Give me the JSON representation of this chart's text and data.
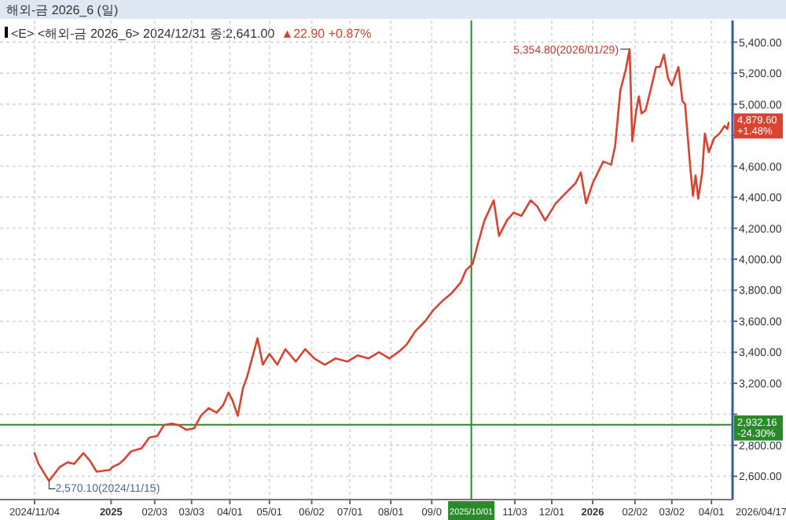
{
  "chart_data": {
    "type": "line",
    "title": "해외-금 2026_6 (일)",
    "subtitle": "<E> <해외-금 2026_6> 2024/12/31 종:2,641.00",
    "annotations": [
      "▲22.90 +0.87%",
      "2026/04/17",
      {
        "text": "5,354.80(2026/01/29)",
        "x": "2026-01-29",
        "y": 5354.8
      },
      {
        "text": "2,570.10(2024/11/15)",
        "x": "2024-11-15",
        "y": 2570.1
      },
      {
        "text": "4,879.60 +1.48%",
        "x": "2026-04-14",
        "y": 4879.6
      }
    ],
    "series": [
      {
        "color": "#d9432f",
        "x": [
          "2024-11-04",
          "2024-11-07",
          "2024-11-12",
          "2024-11-15",
          "2024-11-23",
          "2024-11-29",
          "2024-12-04",
          "2024-12-11",
          "2024-12-16",
          "2024-12-21",
          "2024-12-31",
          "2025-01-02",
          "2025-01-07",
          "2025-01-11",
          "2025-01-16",
          "2025-01-24",
          "2025-01-30",
          "2025-02-05",
          "2025-02-10",
          "2025-02-16",
          "2025-02-21",
          "2025-02-27",
          "2025-03-05",
          "2025-03-10",
          "2025-03-16",
          "2025-03-22",
          "2025-03-27",
          "2025-03-31",
          "2025-04-03",
          "2025-04-07",
          "2025-04-11",
          "2025-04-14",
          "2025-04-22",
          "2025-04-26",
          "2025-05-01",
          "2025-05-07",
          "2025-05-13",
          "2025-05-21",
          "2025-05-28",
          "2025-06-04",
          "2025-06-12",
          "2025-06-20",
          "2025-06-29",
          "2025-07-07",
          "2025-07-15",
          "2025-07-23",
          "2025-07-31",
          "2025-08-08",
          "2025-08-13",
          "2025-08-20",
          "2025-08-27",
          "2025-09-02",
          "2025-09-09",
          "2025-09-16",
          "2025-09-23",
          "2025-09-27",
          "2025-10-02",
          "2025-10-06",
          "2025-10-11",
          "2025-10-18",
          "2025-10-22",
          "2025-10-28",
          "2025-11-02",
          "2025-11-08",
          "2025-11-15",
          "2025-11-20",
          "2025-11-26",
          "2025-12-04",
          "2025-12-12",
          "2025-12-19",
          "2025-12-23",
          "2025-12-27",
          "2026-01-01",
          "2026-01-09",
          "2026-01-15",
          "2026-01-18",
          "2026-01-22",
          "2026-01-26",
          "2026-01-29",
          "2026-01-31",
          "2026-02-03",
          "2026-02-05",
          "2026-02-07",
          "2026-02-10",
          "2026-02-13",
          "2026-02-18",
          "2026-02-21",
          "2026-02-24",
          "2026-02-27",
          "2026-03-02",
          "2026-03-07",
          "2026-03-10",
          "2026-03-12",
          "2026-03-16",
          "2026-03-18",
          "2026-03-20",
          "2026-03-22",
          "2026-03-25",
          "2026-03-27",
          "2026-03-30",
          "2026-04-03",
          "2026-04-07",
          "2026-04-11",
          "2026-04-13",
          "2026-04-14"
        ],
        "values": [
          2750,
          2680,
          2610,
          2570.1,
          2660,
          2690,
          2680,
          2750,
          2700,
          2630,
          2641,
          2660,
          2680,
          2710,
          2760,
          2780,
          2850,
          2860,
          2930,
          2940,
          2930,
          2900,
          2910,
          2990,
          3040,
          3010,
          3060,
          3140,
          3090,
          2990,
          3170,
          3240,
          3490,
          3320,
          3390,
          3320,
          3420,
          3340,
          3420,
          3360,
          3320,
          3360,
          3340,
          3380,
          3360,
          3400,
          3360,
          3410,
          3450,
          3540,
          3600,
          3670,
          3730,
          3780,
          3850,
          3930,
          3970,
          4100,
          4250,
          4380,
          4150,
          4250,
          4300,
          4280,
          4380,
          4340,
          4250,
          4360,
          4430,
          4490,
          4560,
          4360,
          4490,
          4630,
          4610,
          4730,
          5090,
          5220,
          5354.8,
          4760,
          4960,
          5050,
          4940,
          4960,
          5060,
          5240,
          5240,
          5320,
          5170,
          5120,
          5240,
          5020,
          5000,
          4590,
          4410,
          4540,
          4390,
          4560,
          4810,
          4690,
          4780,
          4810,
          4860,
          4840,
          4879.6
        ]
      }
    ],
    "xlim": [
      "2024-11-04",
      "2026-04-17"
    ],
    "xticks": [
      {
        "value": "2024-11-04",
        "label": "2024/11/04"
      },
      {
        "value": "2025-01-01",
        "label": "2025"
      },
      {
        "value": "2025-02-03",
        "label": "02/03"
      },
      {
        "value": "2025-03-03",
        "label": "03/03"
      },
      {
        "value": "2025-04-01",
        "label": "04/01"
      },
      {
        "value": "2025-05-01",
        "label": "05/01"
      },
      {
        "value": "2025-06-02",
        "label": "06/02"
      },
      {
        "value": "2025-07-01",
        "label": "07/01"
      },
      {
        "value": "2025-08-01",
        "label": "08/01"
      },
      {
        "value": "2025-09-01",
        "label": "09/0"
      },
      {
        "value": "2025-11-03",
        "label": "11/03"
      },
      {
        "value": "2025-12-01",
        "label": "12/01"
      },
      {
        "value": "2026-01-01",
        "label": "2026"
      },
      {
        "value": "2026-02-02",
        "label": "02/02"
      },
      {
        "value": "2026-03-02",
        "label": "03/02"
      },
      {
        "value": "2026-04-01",
        "label": "04/01"
      }
    ],
    "ylim": [
      2450,
      5540
    ],
    "yticks": [
      {
        "value": 2600,
        "label": "2,600.00"
      },
      {
        "value": 2800,
        "label": "2,800.00"
      },
      {
        "value": 3000,
        "label": null
      },
      {
        "value": 3200,
        "label": "3,200.00"
      },
      {
        "value": 3400,
        "label": "3,400.00"
      },
      {
        "value": 3600,
        "label": "3,600.00"
      },
      {
        "value": 3800,
        "label": "3,800.00"
      },
      {
        "value": 4000,
        "label": "4,000.00"
      },
      {
        "value": 4200,
        "label": "4,200.00"
      },
      {
        "value": 4400,
        "label": "4,400.00"
      },
      {
        "value": 4600,
        "label": "4,600.00"
      },
      {
        "value": 4800,
        "label": null
      },
      {
        "value": 5000,
        "label": "5,000.00"
      },
      {
        "value": 5200,
        "label": "5,200.00"
      },
      {
        "value": 5400,
        "label": "5,400.00"
      }
    ],
    "ref_lines": [
      {
        "axis": "x",
        "value": "2025-10-01",
        "label": "2025/10/01",
        "color": "#2a8a2a"
      },
      {
        "axis": "y",
        "value": 2932.16,
        "label": "2,932.16 -24.30%",
        "color": "#2a8a2a"
      }
    ],
    "grid": true,
    "line_style": "solid",
    "marker": "none"
  }
}
